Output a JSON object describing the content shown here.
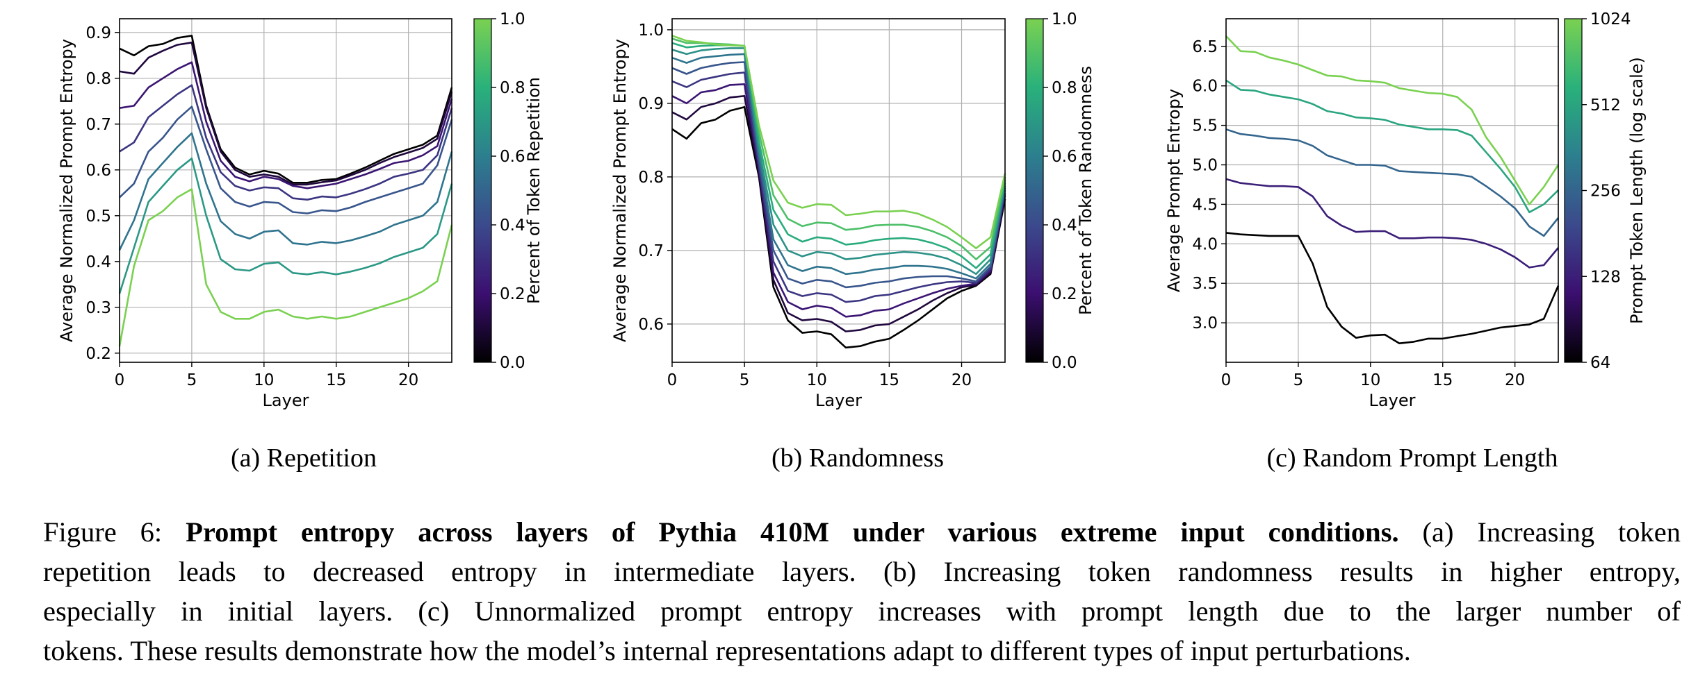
{
  "chart_data": [
    {
      "type": "line",
      "xlabel": "Layer",
      "ylabel": "Average Normalized Prompt Entropy",
      "xlim": [
        0,
        23
      ],
      "ylim": [
        0.18,
        0.93
      ],
      "xticks": [
        0,
        5,
        10,
        15,
        20
      ],
      "yticks": [
        0.2,
        0.3,
        0.4,
        0.5,
        0.6,
        0.7,
        0.8,
        0.9
      ],
      "grid": true,
      "colorbar": {
        "label": "Percent of Token Repetition",
        "ticks": [
          "0.0",
          "0.2",
          "0.4",
          "0.6",
          "0.8",
          "1.0"
        ],
        "colormap": "viridis"
      },
      "x": [
        0,
        1,
        2,
        3,
        4,
        5,
        6,
        7,
        8,
        9,
        10,
        11,
        12,
        13,
        14,
        15,
        16,
        17,
        18,
        19,
        20,
        21,
        22,
        23
      ],
      "series": [
        {
          "color_value": 0.0,
          "values": [
            0.865,
            0.85,
            0.87,
            0.875,
            0.888,
            0.893,
            0.74,
            0.645,
            0.605,
            0.59,
            0.598,
            0.592,
            0.572,
            0.572,
            0.578,
            0.58,
            0.592,
            0.605,
            0.62,
            0.635,
            0.645,
            0.655,
            0.675,
            0.78
          ]
        },
        {
          "color_value": 0.11,
          "values": [
            0.815,
            0.81,
            0.845,
            0.86,
            0.873,
            0.878,
            0.735,
            0.64,
            0.6,
            0.585,
            0.59,
            0.585,
            0.568,
            0.568,
            0.573,
            0.577,
            0.588,
            0.6,
            0.615,
            0.628,
            0.638,
            0.648,
            0.668,
            0.77
          ]
        },
        {
          "color_value": 0.22,
          "values": [
            0.735,
            0.74,
            0.78,
            0.8,
            0.82,
            0.835,
            0.705,
            0.62,
            0.585,
            0.575,
            0.585,
            0.58,
            0.565,
            0.56,
            0.565,
            0.57,
            0.58,
            0.59,
            0.602,
            0.615,
            0.62,
            0.632,
            0.652,
            0.755
          ]
        },
        {
          "color_value": 0.33,
          "values": [
            0.64,
            0.66,
            0.715,
            0.74,
            0.765,
            0.785,
            0.67,
            0.595,
            0.565,
            0.555,
            0.562,
            0.56,
            0.538,
            0.535,
            0.542,
            0.54,
            0.548,
            0.558,
            0.57,
            0.585,
            0.592,
            0.6,
            0.632,
            0.735
          ]
        },
        {
          "color_value": 0.44,
          "values": [
            0.54,
            0.57,
            0.64,
            0.67,
            0.71,
            0.738,
            0.645,
            0.56,
            0.53,
            0.52,
            0.53,
            0.528,
            0.508,
            0.505,
            0.512,
            0.51,
            0.518,
            0.53,
            0.54,
            0.55,
            0.56,
            0.57,
            0.61,
            0.71
          ]
        },
        {
          "color_value": 0.56,
          "values": [
            0.425,
            0.49,
            0.58,
            0.615,
            0.65,
            0.68,
            0.57,
            0.488,
            0.46,
            0.45,
            0.465,
            0.468,
            0.44,
            0.437,
            0.443,
            0.44,
            0.446,
            0.455,
            0.465,
            0.48,
            0.49,
            0.5,
            0.53,
            0.64
          ]
        },
        {
          "color_value": 0.7,
          "values": [
            0.33,
            0.43,
            0.53,
            0.565,
            0.6,
            0.625,
            0.5,
            0.405,
            0.383,
            0.38,
            0.395,
            0.398,
            0.375,
            0.372,
            0.377,
            0.372,
            0.378,
            0.386,
            0.396,
            0.41,
            0.42,
            0.43,
            0.46,
            0.57
          ]
        },
        {
          "color_value": 1.0,
          "values": [
            0.215,
            0.39,
            0.49,
            0.51,
            0.54,
            0.558,
            0.35,
            0.29,
            0.275,
            0.275,
            0.29,
            0.295,
            0.28,
            0.275,
            0.28,
            0.275,
            0.28,
            0.29,
            0.3,
            0.31,
            0.32,
            0.335,
            0.357,
            0.48
          ]
        }
      ]
    },
    {
      "type": "line",
      "xlabel": "Layer",
      "ylabel": "Average Normalized Prompt Entropy",
      "xlim": [
        0,
        23
      ],
      "ylim": [
        0.548,
        1.015
      ],
      "xticks": [
        0,
        5,
        10,
        15,
        20
      ],
      "yticks": [
        0.6,
        0.7,
        0.8,
        0.9,
        1.0
      ],
      "grid": true,
      "colorbar": {
        "label": "Percent of Token Randomness",
        "ticks": [
          "0.0",
          "0.2",
          "0.4",
          "0.6",
          "0.8",
          "1.0"
        ],
        "colormap": "viridis"
      },
      "x": [
        0,
        1,
        2,
        3,
        4,
        5,
        6,
        7,
        8,
        9,
        10,
        11,
        12,
        13,
        14,
        15,
        16,
        17,
        18,
        19,
        20,
        21,
        22,
        23
      ],
      "series": [
        {
          "color_value": 0.0,
          "values": [
            0.865,
            0.852,
            0.873,
            0.878,
            0.89,
            0.895,
            0.8,
            0.65,
            0.605,
            0.588,
            0.59,
            0.586,
            0.568,
            0.57,
            0.576,
            0.58,
            0.592,
            0.605,
            0.62,
            0.635,
            0.645,
            0.652,
            0.668,
            0.77
          ]
        },
        {
          "color_value": 0.11,
          "values": [
            0.888,
            0.878,
            0.895,
            0.9,
            0.908,
            0.91,
            0.805,
            0.66,
            0.615,
            0.605,
            0.607,
            0.603,
            0.59,
            0.592,
            0.598,
            0.6,
            0.61,
            0.62,
            0.632,
            0.642,
            0.65,
            0.653,
            0.67,
            0.775
          ]
        },
        {
          "color_value": 0.22,
          "values": [
            0.91,
            0.9,
            0.915,
            0.918,
            0.925,
            0.926,
            0.81,
            0.67,
            0.63,
            0.62,
            0.625,
            0.622,
            0.61,
            0.612,
            0.618,
            0.62,
            0.628,
            0.635,
            0.642,
            0.648,
            0.652,
            0.655,
            0.672,
            0.778
          ]
        },
        {
          "color_value": 0.33,
          "values": [
            0.93,
            0.922,
            0.932,
            0.936,
            0.94,
            0.942,
            0.815,
            0.685,
            0.645,
            0.638,
            0.642,
            0.64,
            0.63,
            0.632,
            0.638,
            0.64,
            0.645,
            0.65,
            0.654,
            0.657,
            0.658,
            0.656,
            0.675,
            0.782
          ]
        },
        {
          "color_value": 0.44,
          "values": [
            0.948,
            0.94,
            0.948,
            0.952,
            0.955,
            0.956,
            0.822,
            0.7,
            0.662,
            0.655,
            0.66,
            0.658,
            0.65,
            0.652,
            0.656,
            0.658,
            0.662,
            0.664,
            0.665,
            0.665,
            0.662,
            0.658,
            0.678,
            0.785
          ]
        },
        {
          "color_value": 0.56,
          "values": [
            0.962,
            0.955,
            0.962,
            0.964,
            0.966,
            0.967,
            0.83,
            0.715,
            0.68,
            0.672,
            0.678,
            0.676,
            0.668,
            0.67,
            0.674,
            0.676,
            0.679,
            0.679,
            0.678,
            0.675,
            0.669,
            0.662,
            0.682,
            0.788
          ]
        },
        {
          "color_value": 0.67,
          "values": [
            0.973,
            0.967,
            0.972,
            0.974,
            0.975,
            0.975,
            0.838,
            0.735,
            0.7,
            0.692,
            0.698,
            0.696,
            0.688,
            0.69,
            0.694,
            0.696,
            0.698,
            0.697,
            0.694,
            0.689,
            0.68,
            0.668,
            0.688,
            0.792
          ]
        },
        {
          "color_value": 0.78,
          "values": [
            0.982,
            0.976,
            0.978,
            0.979,
            0.979,
            0.978,
            0.848,
            0.755,
            0.722,
            0.712,
            0.718,
            0.716,
            0.708,
            0.71,
            0.714,
            0.716,
            0.717,
            0.715,
            0.71,
            0.703,
            0.692,
            0.676,
            0.695,
            0.796
          ]
        },
        {
          "color_value": 0.89,
          "values": [
            0.988,
            0.982,
            0.982,
            0.981,
            0.98,
            0.978,
            0.86,
            0.775,
            0.743,
            0.733,
            0.738,
            0.737,
            0.728,
            0.73,
            0.734,
            0.735,
            0.735,
            0.732,
            0.726,
            0.718,
            0.706,
            0.688,
            0.705,
            0.8
          ]
        },
        {
          "color_value": 1.0,
          "values": [
            0.992,
            0.985,
            0.983,
            0.98,
            0.979,
            0.978,
            0.87,
            0.795,
            0.765,
            0.758,
            0.763,
            0.762,
            0.748,
            0.75,
            0.753,
            0.753,
            0.754,
            0.75,
            0.742,
            0.732,
            0.718,
            0.703,
            0.718,
            0.805
          ]
        }
      ]
    },
    {
      "type": "line",
      "xlabel": "Layer",
      "ylabel": "Average Prompt Entropy",
      "xlim": [
        0,
        23
      ],
      "ylim": [
        2.5,
        6.85
      ],
      "xticks": [
        0,
        5,
        10,
        15,
        20
      ],
      "yticks": [
        3.0,
        3.5,
        4.0,
        4.5,
        5.0,
        5.5,
        6.0,
        6.5
      ],
      "grid": true,
      "colorbar": {
        "label": "Prompt Token Length (log scale)",
        "ticks": [
          "64",
          "128",
          "256",
          "512",
          "1024"
        ],
        "colormap": "viridis",
        "scale": "log"
      },
      "x": [
        0,
        1,
        2,
        3,
        4,
        5,
        6,
        7,
        8,
        9,
        10,
        11,
        12,
        13,
        14,
        15,
        16,
        17,
        18,
        19,
        20,
        21,
        22,
        23
      ],
      "series": [
        {
          "color_value": 64,
          "values": [
            4.14,
            4.12,
            4.11,
            4.1,
            4.1,
            4.1,
            3.75,
            3.2,
            2.95,
            2.81,
            2.84,
            2.85,
            2.74,
            2.76,
            2.8,
            2.8,
            2.83,
            2.86,
            2.9,
            2.94,
            2.96,
            2.98,
            3.05,
            3.47
          ]
        },
        {
          "color_value": 128,
          "values": [
            4.82,
            4.77,
            4.75,
            4.73,
            4.73,
            4.72,
            4.6,
            4.35,
            4.23,
            4.15,
            4.16,
            4.16,
            4.07,
            4.07,
            4.08,
            4.08,
            4.07,
            4.05,
            4.0,
            3.93,
            3.83,
            3.7,
            3.73,
            3.95
          ]
        },
        {
          "color_value": 256,
          "values": [
            5.45,
            5.39,
            5.37,
            5.34,
            5.33,
            5.31,
            5.24,
            5.12,
            5.06,
            5.0,
            5.0,
            4.99,
            4.92,
            4.91,
            4.9,
            4.89,
            4.88,
            4.85,
            4.73,
            4.6,
            4.45,
            4.22,
            4.1,
            4.33
          ]
        },
        {
          "color_value": 512,
          "values": [
            6.07,
            5.95,
            5.94,
            5.89,
            5.86,
            5.83,
            5.77,
            5.68,
            5.65,
            5.6,
            5.59,
            5.57,
            5.51,
            5.48,
            5.45,
            5.45,
            5.44,
            5.37,
            5.16,
            4.95,
            4.72,
            4.4,
            4.5,
            4.68
          ]
        },
        {
          "color_value": 1024,
          "values": [
            6.63,
            6.44,
            6.43,
            6.36,
            6.32,
            6.27,
            6.2,
            6.13,
            6.12,
            6.07,
            6.06,
            6.04,
            5.97,
            5.94,
            5.91,
            5.9,
            5.86,
            5.7,
            5.35,
            5.1,
            4.8,
            4.5,
            4.72,
            5.0
          ]
        }
      ]
    }
  ],
  "subcaptions": [
    "(a) Repetition",
    "(b) Randomness",
    "(c) Random Prompt Length"
  ],
  "caption": {
    "label": "Figure 6:",
    "bold": "Prompt entropy across layers of Pythia 410M under various extreme input conditions.",
    "line1_rest": "(a) Increasing token",
    "line2": "repetition leads to decreased entropy in intermediate layers.  (b) Increasing token randomness results in higher entropy,",
    "line3": "especially in initial layers.  (c) Unnormalized prompt entropy increases with prompt length due to the larger number of",
    "line4": "tokens. These results demonstrate how the model’s internal representations adapt to different types of input perturbations."
  }
}
